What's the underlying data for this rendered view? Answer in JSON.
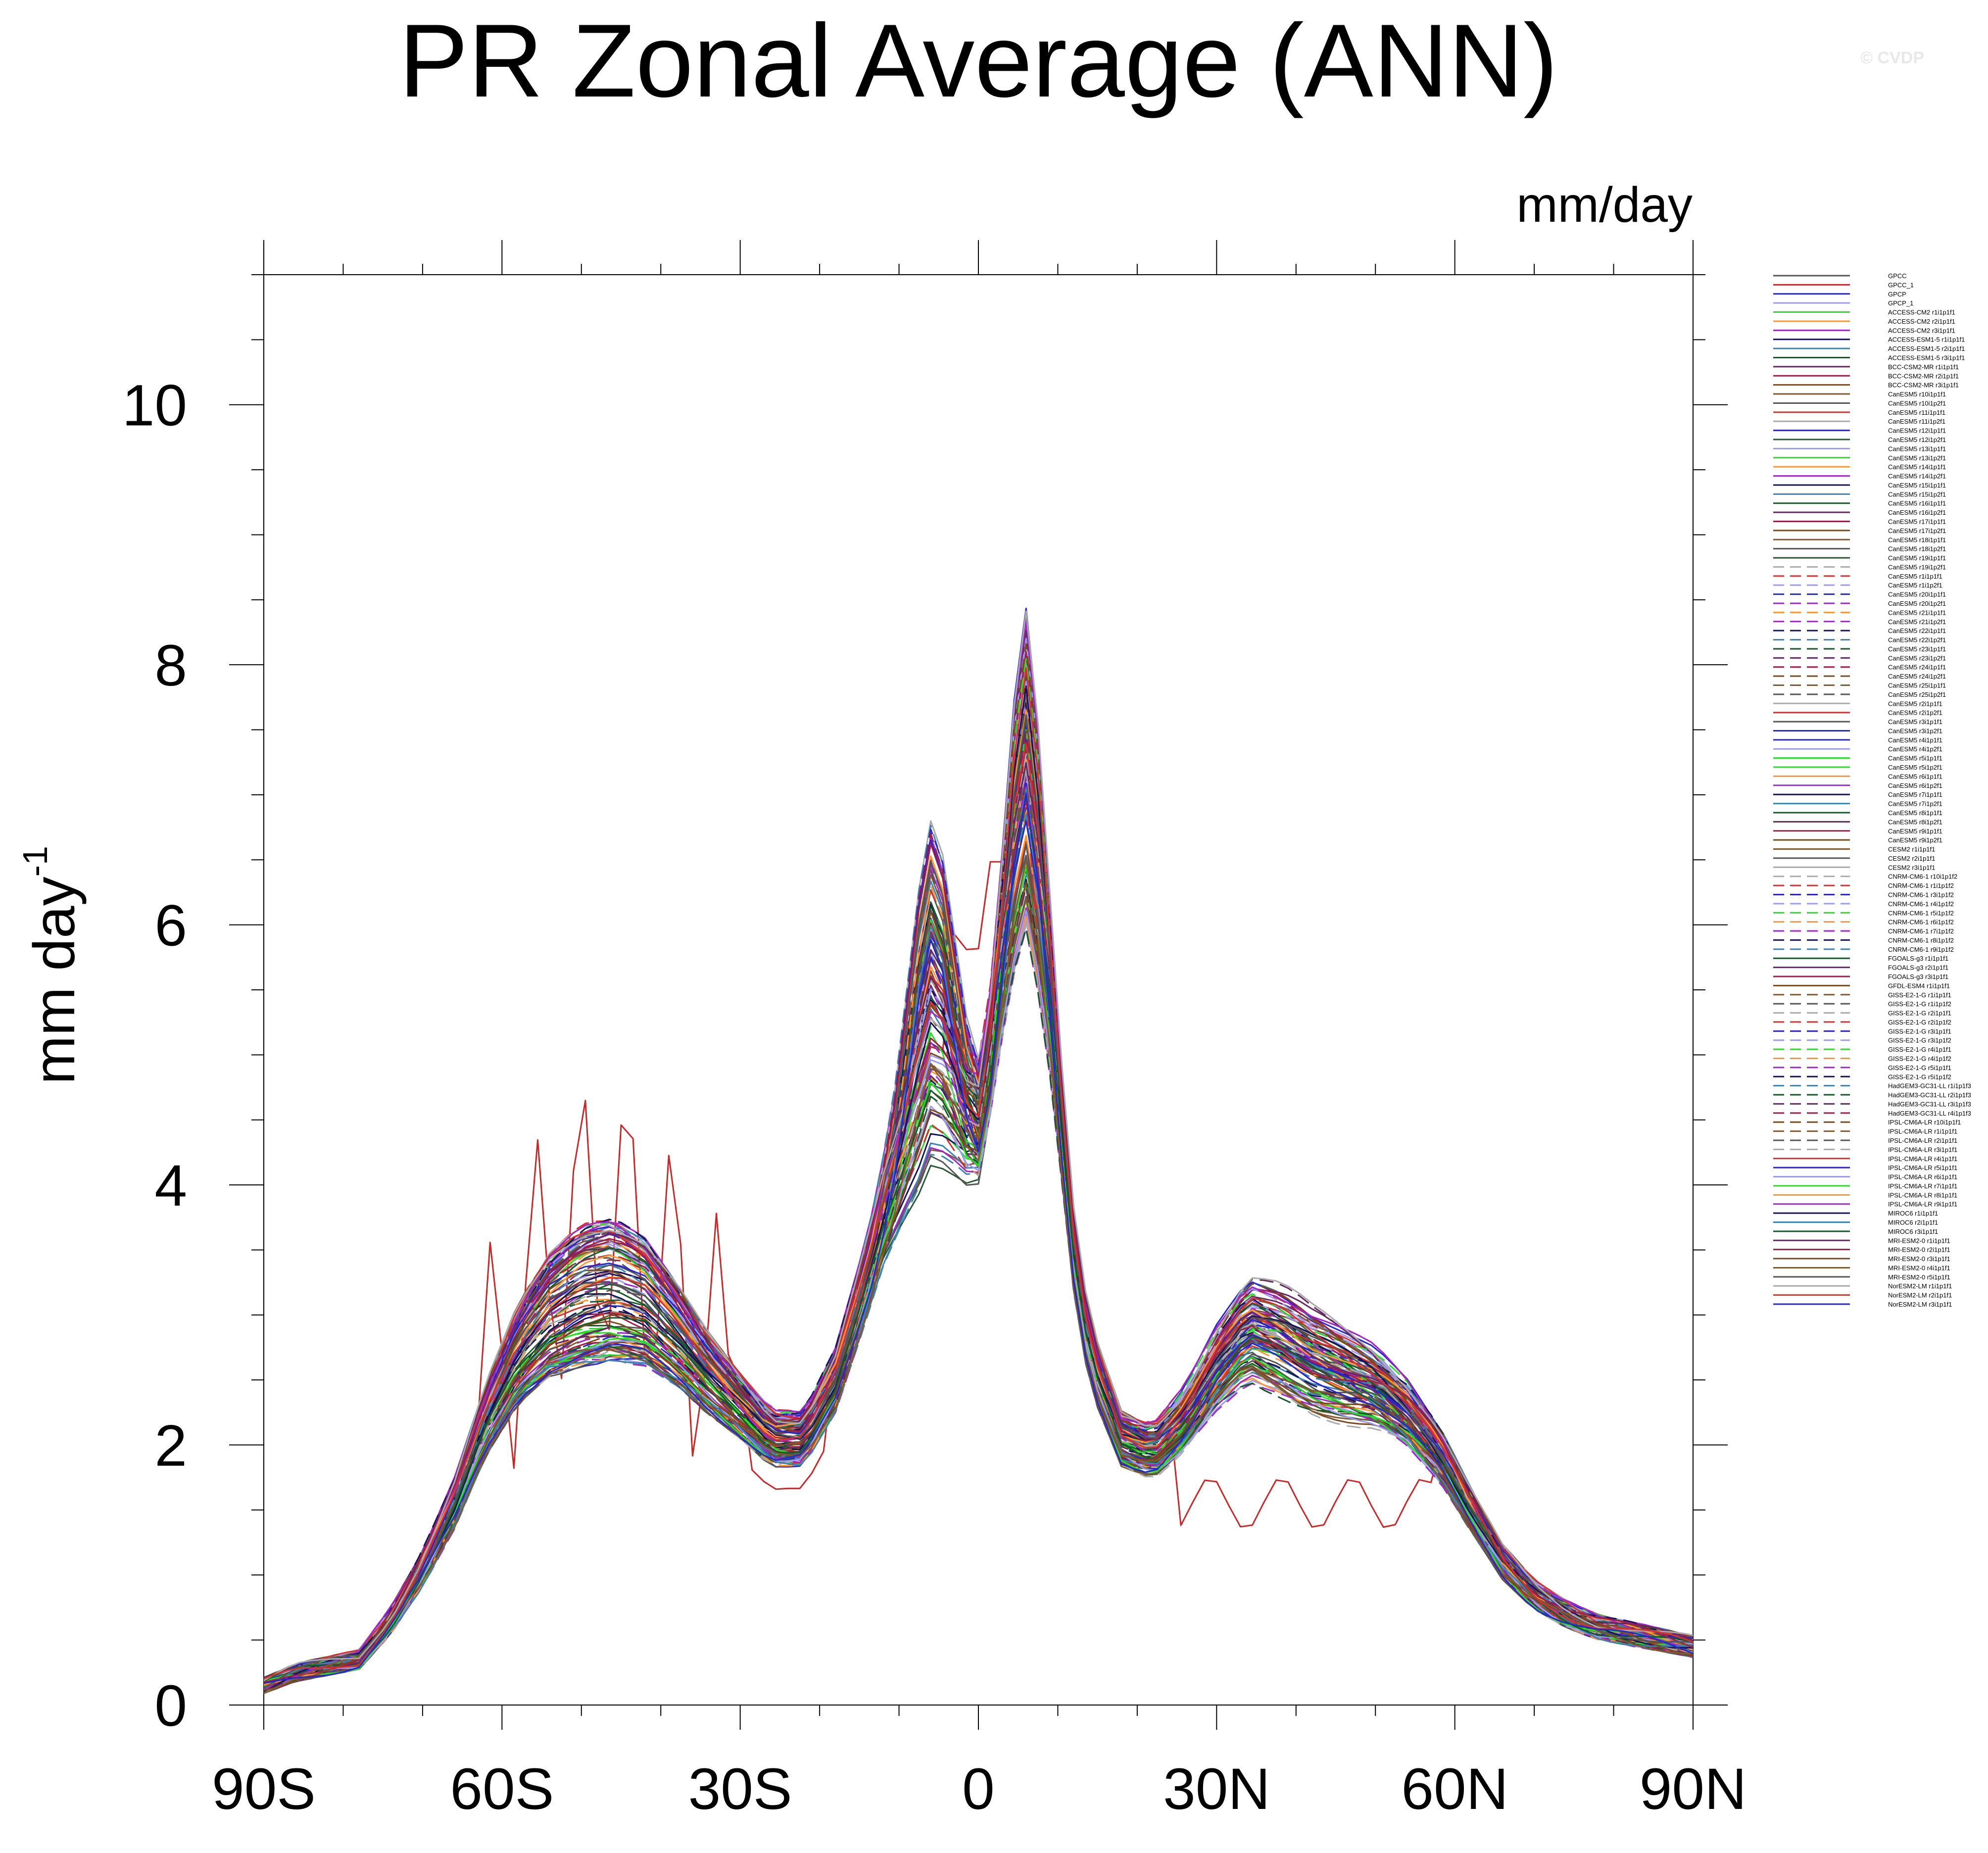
{
  "title": "PR Zonal Average (ANN)",
  "units": "mm/day",
  "credit": "© CVDP",
  "chart_data": {
    "type": "line",
    "title": "PR Zonal Average (ANN)",
    "xlabel": "",
    "ylabel": "mm day",
    "ylabel_sup": "-1",
    "xlim": [
      -90,
      90
    ],
    "ylim": [
      0,
      11
    ],
    "xticks": [
      -90,
      -60,
      -30,
      0,
      30,
      60,
      90
    ],
    "xtick_labels": [
      "90S",
      "60S",
      "30S",
      "0",
      "30N",
      "60N",
      "90N"
    ],
    "yticks": [
      0,
      2,
      4,
      6,
      8,
      10
    ],
    "ytick_labels": [
      "0",
      "2",
      "4",
      "6",
      "8",
      "10"
    ],
    "base_profile": {
      "lat": [
        -90,
        -86,
        -82,
        -78,
        -74,
        -70,
        -66,
        -62,
        -58,
        -54,
        -50,
        -46,
        -42,
        -38,
        -34,
        -30,
        -26,
        -22,
        -18,
        -14,
        -10,
        -8,
        -6,
        -4,
        -2,
        0,
        2,
        4,
        6,
        8,
        10,
        12,
        14,
        18,
        22,
        26,
        30,
        34,
        38,
        42,
        46,
        50,
        54,
        58,
        62,
        66,
        70,
        74,
        78,
        82,
        86,
        90
      ],
      "pr": [
        0.15,
        0.25,
        0.3,
        0.35,
        0.65,
        1.05,
        1.55,
        2.2,
        2.7,
        3.0,
        3.15,
        3.2,
        3.1,
        2.85,
        2.55,
        2.3,
        2.05,
        2.05,
        2.5,
        3.3,
        4.3,
        5.0,
        5.5,
        5.3,
        4.7,
        4.5,
        5.2,
        6.5,
        7.2,
        6.3,
        4.8,
        3.5,
        2.7,
        2.05,
        1.95,
        2.2,
        2.6,
        2.9,
        2.8,
        2.65,
        2.55,
        2.45,
        2.25,
        1.95,
        1.5,
        1.1,
        0.85,
        0.7,
        0.6,
        0.55,
        0.5,
        0.45
      ]
    },
    "series": [
      {
        "name": "GPCC",
        "color": "#555555",
        "dash": "solid"
      },
      {
        "name": "GPCC_1",
        "color": "#c82828",
        "dash": "solid"
      },
      {
        "name": "GPCP",
        "color": "#2828c8",
        "dash": "solid"
      },
      {
        "name": "GPCP_1",
        "color": "#9b9bf0",
        "dash": "solid"
      },
      {
        "name": "ACCESS-CM2 r1i1p1f1",
        "color": "#28dc28",
        "dash": "solid"
      },
      {
        "name": "ACCESS-CM2 r2i1p1f1",
        "color": "#ff9632",
        "dash": "solid"
      },
      {
        "name": "ACCESS-CM2 r3i1p1f1",
        "color": "#a028c8",
        "dash": "solid"
      },
      {
        "name": "ACCESS-ESM1-5 r1i1p1f1",
        "color": "#14145a",
        "dash": "solid"
      },
      {
        "name": "ACCESS-ESM1-5 r2i1p1f1",
        "color": "#3c82b4",
        "dash": "solid"
      },
      {
        "name": "ACCESS-ESM1-5 r3i1p1f1",
        "color": "#145a28",
        "dash": "solid"
      },
      {
        "name": "BCC-CSM2-MR r1i1p1f1",
        "color": "#642864",
        "dash": "solid"
      },
      {
        "name": "BCC-CSM2-MR r2i1p1f1",
        "color": "#a01e46",
        "dash": "solid"
      },
      {
        "name": "BCC-CSM2-MR r3i1p1f1",
        "color": "#7a4a1e",
        "dash": "solid"
      },
      {
        "name": "CanESM5 r10i1p1f1",
        "color": "#825a32",
        "dash": "solid"
      },
      {
        "name": "CanESM5 r10i1p2f1",
        "color": "#555555",
        "dash": "solid"
      },
      {
        "name": "CanESM5 r11i1p1f1",
        "color": "#d23232",
        "dash": "solid"
      },
      {
        "name": "CanESM5 r11i1p2f1",
        "color": "#aaaaaa",
        "dash": "solid"
      },
      {
        "name": "CanESM5 r12i1p1f1",
        "color": "#2828c8",
        "dash": "solid"
      },
      {
        "name": "CanESM5 r12i1p2f1",
        "color": "#285a32",
        "dash": "solid"
      },
      {
        "name": "CanESM5 r13i1p1f1",
        "color": "#9b9bf0",
        "dash": "solid"
      },
      {
        "name": "CanESM5 r13i1p2f1",
        "color": "#28dc28",
        "dash": "solid"
      },
      {
        "name": "CanESM5 r14i1p1f1",
        "color": "#ff9632",
        "dash": "solid"
      },
      {
        "name": "CanESM5 r14i1p2f1",
        "color": "#a028c8",
        "dash": "solid"
      },
      {
        "name": "CanESM5 r15i1p1f1",
        "color": "#14145a",
        "dash": "solid"
      },
      {
        "name": "CanESM5 r15i1p2f1",
        "color": "#3c82b4",
        "dash": "solid"
      },
      {
        "name": "CanESM5 r16i1p1f1",
        "color": "#145a28",
        "dash": "solid"
      },
      {
        "name": "CanESM5 r16i1p2f1",
        "color": "#642864",
        "dash": "solid"
      },
      {
        "name": "CanESM5 r17i1p1f1",
        "color": "#a01e46",
        "dash": "solid"
      },
      {
        "name": "CanESM5 r17i1p2f1",
        "color": "#7a4a1e",
        "dash": "solid"
      },
      {
        "name": "CanESM5 r18i1p1f1",
        "color": "#825a32",
        "dash": "solid"
      },
      {
        "name": "CanESM5 r18i1p2f1",
        "color": "#555555",
        "dash": "solid"
      },
      {
        "name": "CanESM5 r19i1p1f1",
        "color": "#285a32",
        "dash": "solid"
      },
      {
        "name": "CanESM5 r19i1p2f1",
        "color": "#aaaaaa",
        "dash": "dash"
      },
      {
        "name": "CanESM5 r1i1p1f1",
        "color": "#d23232",
        "dash": "dash"
      },
      {
        "name": "CanESM5 r1i1p2f1",
        "color": "#9b9bf0",
        "dash": "dash"
      },
      {
        "name": "CanESM5 r20i1p1f1",
        "color": "#2828c8",
        "dash": "dash"
      },
      {
        "name": "CanESM5 r20i1p2f1",
        "color": "#a028c8",
        "dash": "dash"
      },
      {
        "name": "CanESM5 r21i1p1f1",
        "color": "#ff9632",
        "dash": "dash"
      },
      {
        "name": "CanESM5 r21i1p2f1",
        "color": "#a028c8",
        "dash": "dash"
      },
      {
        "name": "CanESM5 r22i1p1f1",
        "color": "#14145a",
        "dash": "dash"
      },
      {
        "name": "CanESM5 r22i1p2f1",
        "color": "#3c82b4",
        "dash": "dash"
      },
      {
        "name": "CanESM5 r23i1p1f1",
        "color": "#145a28",
        "dash": "dash"
      },
      {
        "name": "CanESM5 r23i1p2f1",
        "color": "#642864",
        "dash": "dash"
      },
      {
        "name": "CanESM5 r24i1p1f1",
        "color": "#a01e46",
        "dash": "dash"
      },
      {
        "name": "CanESM5 r24i1p2f1",
        "color": "#7a4a1e",
        "dash": "dash"
      },
      {
        "name": "CanESM5 r25i1p1f1",
        "color": "#825a32",
        "dash": "dash"
      },
      {
        "name": "CanESM5 r25i1p2f1",
        "color": "#555555",
        "dash": "dash"
      },
      {
        "name": "CanESM5 r2i1p1f1",
        "color": "#aaaaaa",
        "dash": "solid"
      },
      {
        "name": "CanESM5 r2i1p2f1",
        "color": "#d23232",
        "dash": "solid"
      },
      {
        "name": "CanESM5 r3i1p1f1",
        "color": "#555555",
        "dash": "solid"
      },
      {
        "name": "CanESM5 r3i1p2f1",
        "color": "#2828c8",
        "dash": "solid"
      },
      {
        "name": "CanESM5 r4i1p1f1",
        "color": "#2828c8",
        "dash": "solid"
      },
      {
        "name": "CanESM5 r4i1p2f1",
        "color": "#9b9bf0",
        "dash": "solid"
      },
      {
        "name": "CanESM5 r5i1p1f1",
        "color": "#28dc28",
        "dash": "solid"
      },
      {
        "name": "CanESM5 r5i1p2f1",
        "color": "#28dc28",
        "dash": "solid"
      },
      {
        "name": "CanESM5 r6i1p1f1",
        "color": "#ff9632",
        "dash": "solid"
      },
      {
        "name": "CanESM5 r6i1p2f1",
        "color": "#a028c8",
        "dash": "solid"
      },
      {
        "name": "CanESM5 r7i1p1f1",
        "color": "#14145a",
        "dash": "solid"
      },
      {
        "name": "CanESM5 r7i1p2f1",
        "color": "#3c82b4",
        "dash": "solid"
      },
      {
        "name": "CanESM5 r8i1p1f1",
        "color": "#145a28",
        "dash": "solid"
      },
      {
        "name": "CanESM5 r8i1p2f1",
        "color": "#642864",
        "dash": "solid"
      },
      {
        "name": "CanESM5 r9i1p1f1",
        "color": "#a01e46",
        "dash": "solid"
      },
      {
        "name": "CanESM5 r9i1p2f1",
        "color": "#7a4a1e",
        "dash": "solid"
      },
      {
        "name": "CESM2 r1i1p1f1",
        "color": "#825a32",
        "dash": "solid"
      },
      {
        "name": "CESM2 r2i1p1f1",
        "color": "#555555",
        "dash": "solid"
      },
      {
        "name": "CESM2 r3i1p1f1",
        "color": "#aaaaaa",
        "dash": "solid"
      },
      {
        "name": "CNRM-CM6-1 r10i1p1f2",
        "color": "#aaaaaa",
        "dash": "dash"
      },
      {
        "name": "CNRM-CM6-1 r1i1p1f2",
        "color": "#d23232",
        "dash": "dash"
      },
      {
        "name": "CNRM-CM6-1 r3i1p1f2",
        "color": "#2828c8",
        "dash": "dash"
      },
      {
        "name": "CNRM-CM6-1 r4i1p1f2",
        "color": "#9b9bf0",
        "dash": "dash"
      },
      {
        "name": "CNRM-CM6-1 r5i1p1f2",
        "color": "#28dc28",
        "dash": "dash"
      },
      {
        "name": "CNRM-CM6-1 r6i1p1f2",
        "color": "#ff9632",
        "dash": "dash"
      },
      {
        "name": "CNRM-CM6-1 r7i1p1f2",
        "color": "#a028c8",
        "dash": "dash"
      },
      {
        "name": "CNRM-CM6-1 r8i1p1f2",
        "color": "#14145a",
        "dash": "dash"
      },
      {
        "name": "CNRM-CM6-1 r9i1p1f2",
        "color": "#3c82b4",
        "dash": "dash"
      },
      {
        "name": "FGOALS-g3 r1i1p1f1",
        "color": "#145a28",
        "dash": "solid"
      },
      {
        "name": "FGOALS-g3 r2i1p1f1",
        "color": "#642864",
        "dash": "solid"
      },
      {
        "name": "FGOALS-g3 r3i1p1f1",
        "color": "#a01e46",
        "dash": "solid"
      },
      {
        "name": "GFDL-ESM4 r1i1p1f1",
        "color": "#7a4a1e",
        "dash": "solid"
      },
      {
        "name": "GISS-E2-1-G r1i1p1f1",
        "color": "#825a32",
        "dash": "dash"
      },
      {
        "name": "GISS-E2-1-G r1i1p1f2",
        "color": "#555555",
        "dash": "dash"
      },
      {
        "name": "GISS-E2-1-G r2i1p1f1",
        "color": "#aaaaaa",
        "dash": "dash"
      },
      {
        "name": "GISS-E2-1-G r2i1p1f2",
        "color": "#d23232",
        "dash": "dash"
      },
      {
        "name": "GISS-E2-1-G r3i1p1f1",
        "color": "#2828c8",
        "dash": "dash"
      },
      {
        "name": "GISS-E2-1-G r3i1p1f2",
        "color": "#9b9bf0",
        "dash": "dash"
      },
      {
        "name": "GISS-E2-1-G r4i1p1f1",
        "color": "#28dc28",
        "dash": "dash"
      },
      {
        "name": "GISS-E2-1-G r4i1p1f2",
        "color": "#ff9632",
        "dash": "dash"
      },
      {
        "name": "GISS-E2-1-G r5i1p1f1",
        "color": "#a028c8",
        "dash": "dash"
      },
      {
        "name": "GISS-E2-1-G r5i1p1f2",
        "color": "#14145a",
        "dash": "dash"
      },
      {
        "name": "HadGEM3-GC31-LL r1i1p1f3",
        "color": "#3c82b4",
        "dash": "dash"
      },
      {
        "name": "HadGEM3-GC31-LL r2i1p1f3",
        "color": "#145a28",
        "dash": "dash"
      },
      {
        "name": "HadGEM3-GC31-LL r3i1p1f3",
        "color": "#642864",
        "dash": "dash"
      },
      {
        "name": "HadGEM3-GC31-LL r4i1p1f3",
        "color": "#a01e46",
        "dash": "dash"
      },
      {
        "name": "IPSL-CM6A-LR r10i1p1f1",
        "color": "#7a4a1e",
        "dash": "dash"
      },
      {
        "name": "IPSL-CM6A-LR r1i1p1f1",
        "color": "#825a32",
        "dash": "dash"
      },
      {
        "name": "IPSL-CM6A-LR r2i1p1f1",
        "color": "#555555",
        "dash": "dash"
      },
      {
        "name": "IPSL-CM6A-LR r3i1p1f1",
        "color": "#aaaaaa",
        "dash": "dash"
      },
      {
        "name": "IPSL-CM6A-LR r4i1p1f1",
        "color": "#d23232",
        "dash": "solid"
      },
      {
        "name": "IPSL-CM6A-LR r5i1p1f1",
        "color": "#2828c8",
        "dash": "solid"
      },
      {
        "name": "IPSL-CM6A-LR r6i1p1f1",
        "color": "#9b9bf0",
        "dash": "solid"
      },
      {
        "name": "IPSL-CM6A-LR r7i1p1f1",
        "color": "#28dc28",
        "dash": "solid"
      },
      {
        "name": "IPSL-CM6A-LR r8i1p1f1",
        "color": "#ff9632",
        "dash": "solid"
      },
      {
        "name": "IPSL-CM6A-LR r9i1p1f1",
        "color": "#a028c8",
        "dash": "solid"
      },
      {
        "name": "MIROC6 r1i1p1f1",
        "color": "#14145a",
        "dash": "solid"
      },
      {
        "name": "MIROC6 r2i1p1f1",
        "color": "#3c82b4",
        "dash": "solid"
      },
      {
        "name": "MIROC6 r3i1p1f1",
        "color": "#145a28",
        "dash": "solid"
      },
      {
        "name": "MRI-ESM2-0 r1i1p1f1",
        "color": "#642864",
        "dash": "solid"
      },
      {
        "name": "MRI-ESM2-0 r2i1p1f1",
        "color": "#a01e46",
        "dash": "solid"
      },
      {
        "name": "MRI-ESM2-0 r3i1p1f1",
        "color": "#7a4a1e",
        "dash": "solid"
      },
      {
        "name": "MRI-ESM2-0 r4i1p1f1",
        "color": "#825a32",
        "dash": "solid"
      },
      {
        "name": "MRI-ESM2-0 r5i1p1f1",
        "color": "#555555",
        "dash": "solid"
      },
      {
        "name": "NorESM2-LM r1i1p1f1",
        "color": "#aaaaaa",
        "dash": "solid"
      },
      {
        "name": "NorESM2-LM r2i1p1f1",
        "color": "#d23232",
        "dash": "solid"
      },
      {
        "name": "NorESM2-LM r3i1p1f1",
        "color": "#2828c8",
        "dash": "solid"
      }
    ]
  }
}
